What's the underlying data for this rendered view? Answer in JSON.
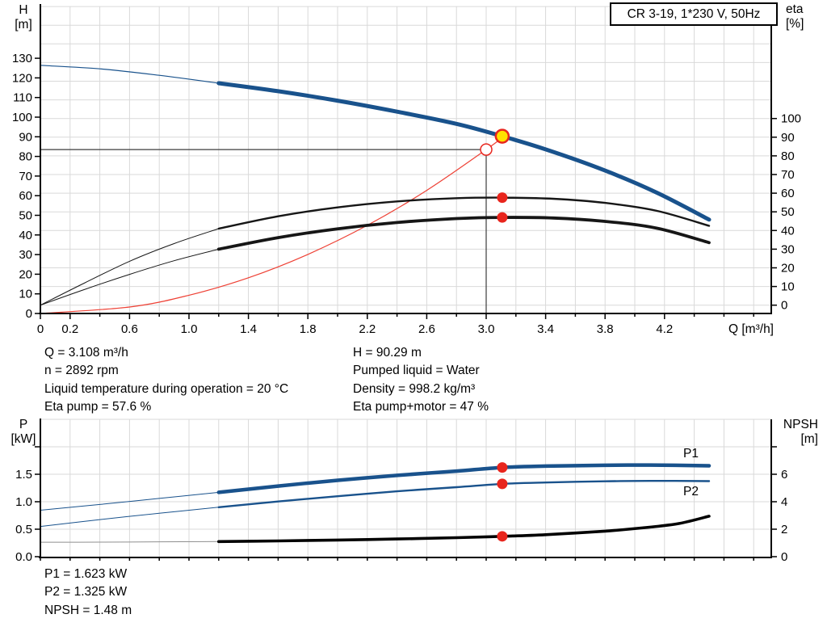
{
  "title_box": {
    "label": "CR 3-19, 1*230 V, 50Hz"
  },
  "info": {
    "left": [
      "Q = 3.108 m³/h",
      "n = 2892 rpm",
      "Liquid temperature during operation = 20 °C",
      "Eta pump = 57.6 %"
    ],
    "right": [
      "H = 90.29 m",
      "Pumped liquid = Water",
      "Density = 998.2 kg/m³",
      "Eta pump+motor = 47 %"
    ]
  },
  "info_bottom": [
    "P1 = 1.623 kW",
    "P2 = 1.325 kW",
    "NPSH = 1.48 m"
  ],
  "colors": {
    "blue": "#19528c",
    "dark": "#161616",
    "black": "#000000",
    "gray": "#8f8f8f",
    "red": "#ee4135",
    "marker_red": "#e8251d",
    "yellow": "#ffe100",
    "grid": "#d9d9d9",
    "axis": "#000000",
    "refline": "#3c3c3c"
  },
  "chart_data": [
    {
      "id": "qh",
      "type": "line",
      "title": "QH and efficiency curves",
      "axes": {
        "left": {
          "title": [
            "H",
            "[m]"
          ],
          "unit": "m",
          "ticks": [
            0,
            10,
            20,
            30,
            40,
            50,
            60,
            70,
            80,
            90,
            100,
            110,
            120,
            130
          ],
          "labels": [
            "0",
            "10",
            "20",
            "30",
            "40",
            "50",
            "60",
            "70",
            "80",
            "90",
            "100",
            "110",
            "120",
            "130"
          ]
        },
        "right": {
          "title": [
            "eta",
            "[%]"
          ],
          "unit": "pct",
          "ticks": [
            0,
            10,
            20,
            30,
            40,
            50,
            60,
            70,
            80,
            90,
            100
          ],
          "labels": [
            "0",
            "10",
            "20",
            "30",
            "40",
            "50",
            "60",
            "70",
            "80",
            "90",
            "100"
          ]
        },
        "x": {
          "title": "Q [m³/h]",
          "unit": "m³/h",
          "minor_step": 0.2,
          "max": 4.8,
          "labeled_ticks": [
            {
              "q": 0,
              "t": "0"
            },
            {
              "q": 0.2,
              "t": "0.2"
            },
            {
              "q": 0.6,
              "t": "0.6"
            },
            {
              "q": 1.0,
              "t": "1.0"
            },
            {
              "q": 1.4,
              "t": "1.4"
            },
            {
              "q": 1.8,
              "t": "1.8"
            },
            {
              "q": 2.2,
              "t": "2.2"
            },
            {
              "q": 2.6,
              "t": "2.6"
            },
            {
              "q": 3.0,
              "t": "3.0"
            },
            {
              "q": 3.4,
              "t": "3.4"
            },
            {
              "q": 3.8,
              "t": "3.8"
            },
            {
              "q": 4.2,
              "t": "4.2"
            }
          ]
        }
      },
      "series": [
        {
          "name": "pump-curve-low-range",
          "axis": "m",
          "color": "blue",
          "width": 1.2,
          "points": [
            [
              0,
              126.4
            ],
            [
              0.4,
              124.6
            ],
            [
              0.8,
              121.3
            ],
            [
              1.2,
              117.3
            ]
          ]
        },
        {
          "name": "pump-curve",
          "axis": "m",
          "color": "blue",
          "width": 5,
          "points": [
            [
              1.2,
              117.3
            ],
            [
              1.6,
              113.2
            ],
            [
              2.0,
              108.4
            ],
            [
              2.4,
              102.8
            ],
            [
              2.8,
              96.6
            ],
            [
              3.108,
              90.29
            ],
            [
              3.4,
              83.6
            ],
            [
              3.8,
              72.8
            ],
            [
              4.15,
              61.5
            ],
            [
              4.5,
              47.8
            ]
          ]
        },
        {
          "name": "system-curve",
          "axis": "m",
          "color": "red",
          "width": 1.2,
          "points": [
            [
              0,
              0
            ],
            [
              0.6,
              3.3
            ],
            [
              1.0,
              9.3
            ],
            [
              1.4,
              18.2
            ],
            [
              1.8,
              30.1
            ],
            [
              2.2,
              44.9
            ],
            [
              2.6,
              62.7
            ],
            [
              3.0,
              83.5
            ],
            [
              3.108,
              89.6
            ]
          ]
        },
        {
          "name": "eta-pump-low-range",
          "axis": "pct",
          "color": "dark",
          "width": 1,
          "points": [
            [
              0,
              0
            ],
            [
              0.3,
              12
            ],
            [
              0.6,
              23.5
            ],
            [
              0.9,
              33
            ],
            [
              1.2,
              41
            ]
          ]
        },
        {
          "name": "eta-pump",
          "axis": "pct",
          "color": "dark",
          "width": 2.4,
          "points": [
            [
              1.2,
              41
            ],
            [
              1.6,
              47.6
            ],
            [
              2.0,
              52.4
            ],
            [
              2.4,
              55.6
            ],
            [
              2.8,
              57.3
            ],
            [
              3.108,
              57.6
            ],
            [
              3.45,
              57
            ],
            [
              3.8,
              54.8
            ],
            [
              4.15,
              50.5
            ],
            [
              4.5,
              42.5
            ]
          ]
        },
        {
          "name": "eta-pump-motor-low-range",
          "axis": "pct",
          "color": "dark",
          "width": 1,
          "points": [
            [
              0,
              0
            ],
            [
              0.3,
              8.5
            ],
            [
              0.6,
              16.5
            ],
            [
              0.9,
              23.8
            ],
            [
              1.2,
              30
            ]
          ]
        },
        {
          "name": "eta-pump-motor",
          "axis": "pct",
          "color": "dark",
          "width": 3.8,
          "points": [
            [
              1.2,
              30
            ],
            [
              1.6,
              36.2
            ],
            [
              2.0,
              40.9
            ],
            [
              2.4,
              44.3
            ],
            [
              2.8,
              46.4
            ],
            [
              3.108,
              47
            ],
            [
              3.45,
              46.7
            ],
            [
              3.8,
              44.9
            ],
            [
              4.15,
              41.2
            ],
            [
              4.5,
              33.5
            ]
          ]
        }
      ],
      "ref_lines": {
        "q": 3.0,
        "h": 83.5
      },
      "markers": [
        {
          "kind": "requested-duty-point",
          "q": 3.0,
          "value": 83.5,
          "unit": "m",
          "style": "open-red"
        },
        {
          "kind": "duty-point",
          "q": 3.108,
          "value": 90.29,
          "unit": "m",
          "style": "yellow"
        },
        {
          "kind": "eta-pump-point",
          "q": 3.108,
          "value": 57.6,
          "unit": "pct",
          "style": "red-dot"
        },
        {
          "kind": "eta-pump-motor-point",
          "q": 3.108,
          "value": 47,
          "unit": "pct",
          "style": "red-dot"
        }
      ]
    },
    {
      "id": "power",
      "type": "line",
      "title": "Power and NPSH curves",
      "axes": {
        "left": {
          "title": [
            "P",
            "[kW]"
          ],
          "unit": "kW",
          "ticks": [
            0,
            0.5,
            1.0,
            1.5,
            2.0
          ],
          "labels": [
            "0.0",
            "0.5",
            "1.0",
            "1.5",
            ""
          ]
        },
        "right": {
          "title": [
            "NPSH",
            "[m]"
          ],
          "unit": "m",
          "ticks": [
            0,
            2,
            4,
            6,
            8
          ],
          "labels": [
            "0",
            "2",
            "4",
            "6",
            ""
          ]
        },
        "x": {
          "title": "",
          "unit": "m³/h",
          "minor_step": 0.2,
          "max": 4.8,
          "labeled_ticks": []
        }
      },
      "series_labels": [
        "P1",
        "P2"
      ],
      "series": [
        {
          "name": "npsh-low-range",
          "axis": "m",
          "color": "gray",
          "width": 1,
          "points": [
            [
              0,
              1.05
            ],
            [
              0.4,
              1.06
            ],
            [
              0.8,
              1.08
            ],
            [
              1.2,
              1.1
            ]
          ]
        },
        {
          "name": "npsh",
          "axis": "m",
          "color": "black",
          "width": 3.6,
          "points": [
            [
              1.2,
              1.1
            ],
            [
              1.6,
              1.15
            ],
            [
              2.0,
              1.21
            ],
            [
              2.4,
              1.29
            ],
            [
              2.8,
              1.38
            ],
            [
              3.108,
              1.48
            ],
            [
              3.4,
              1.6
            ],
            [
              3.8,
              1.86
            ],
            [
              4.1,
              2.15
            ],
            [
              4.3,
              2.42
            ],
            [
              4.5,
              2.95
            ]
          ]
        },
        {
          "name": "p2-low-range",
          "axis": "kW",
          "color": "blue",
          "width": 1,
          "points": [
            [
              0,
              0.55
            ],
            [
              0.4,
              0.675
            ],
            [
              0.8,
              0.79
            ],
            [
              1.2,
              0.9
            ]
          ]
        },
        {
          "name": "p2",
          "axis": "kW",
          "color": "blue",
          "width": 2.4,
          "points": [
            [
              1.2,
              0.9
            ],
            [
              1.6,
              1.005
            ],
            [
              2.0,
              1.1
            ],
            [
              2.4,
              1.19
            ],
            [
              2.8,
              1.265
            ],
            [
              3.108,
              1.325
            ],
            [
              3.4,
              1.35
            ],
            [
              3.8,
              1.372
            ],
            [
              4.1,
              1.38
            ],
            [
              4.5,
              1.375
            ]
          ]
        },
        {
          "name": "p1-low-range",
          "axis": "kW",
          "color": "blue",
          "width": 1,
          "points": [
            [
              0,
              0.845
            ],
            [
              0.4,
              0.95
            ],
            [
              0.8,
              1.06
            ],
            [
              1.2,
              1.17
            ]
          ]
        },
        {
          "name": "p1",
          "axis": "kW",
          "color": "blue",
          "width": 4.5,
          "points": [
            [
              1.2,
              1.17
            ],
            [
              1.6,
              1.285
            ],
            [
              2.0,
              1.39
            ],
            [
              2.4,
              1.48
            ],
            [
              2.8,
              1.558
            ],
            [
              3.108,
              1.623
            ],
            [
              3.4,
              1.648
            ],
            [
              3.8,
              1.663
            ],
            [
              4.1,
              1.667
            ],
            [
              4.5,
              1.655
            ]
          ]
        }
      ],
      "markers": [
        {
          "kind": "p1-point",
          "q": 3.108,
          "value": 1.623,
          "unit": "kW",
          "style": "red-dot"
        },
        {
          "kind": "p2-point",
          "q": 3.108,
          "value": 1.325,
          "unit": "kW",
          "style": "red-dot"
        },
        {
          "kind": "npsh-point",
          "q": 3.108,
          "value": 1.48,
          "unit": "m",
          "style": "red-dot"
        }
      ]
    }
  ]
}
